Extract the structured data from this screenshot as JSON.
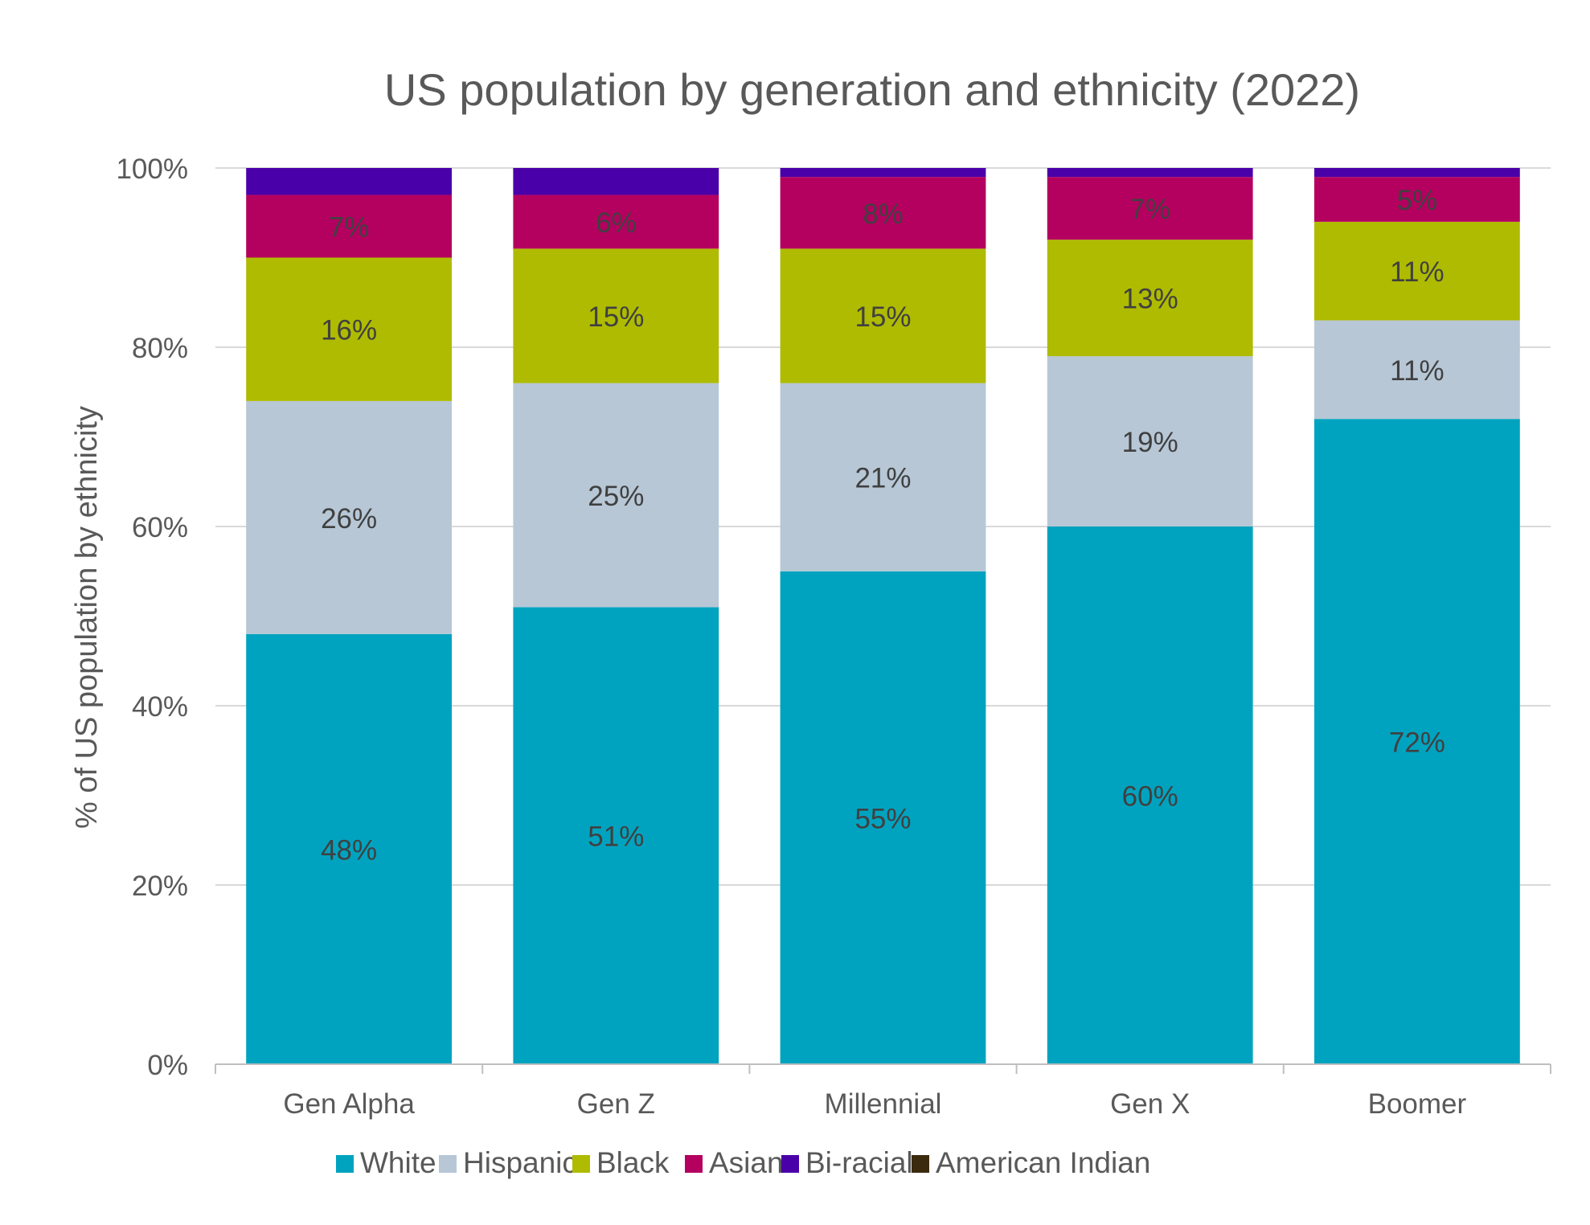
{
  "chart_data": {
    "type": "bar",
    "stacked": true,
    "title": "US population by generation and ethnicity (2022)",
    "xlabel": "",
    "ylabel": "% of US population by ethnicity",
    "ylim": [
      0,
      100
    ],
    "y_ticks": [
      "0%",
      "20%",
      "40%",
      "60%",
      "80%",
      "100%"
    ],
    "y_tick_values": [
      0,
      20,
      40,
      60,
      80,
      100
    ],
    "grid": true,
    "legend_position": "bottom",
    "categories": [
      "Gen Alpha",
      "Gen Z",
      "Millennial",
      "Gen X",
      "Boomer"
    ],
    "series": [
      {
        "name": "White",
        "color": "#00A3BF",
        "values": [
          48,
          51,
          55,
          60,
          72
        ],
        "labels": [
          "48%",
          "51%",
          "55%",
          "60%",
          "72%"
        ]
      },
      {
        "name": "Hispanic",
        "color": "#B7C7D6",
        "values": [
          26,
          25,
          21,
          19,
          11
        ],
        "labels": [
          "26%",
          "25%",
          "21%",
          "19%",
          "11%"
        ]
      },
      {
        "name": "Black",
        "color": "#AFBB00",
        "values": [
          16,
          15,
          15,
          13,
          11
        ],
        "labels": [
          "16%",
          "15%",
          "15%",
          "13%",
          "11%"
        ]
      },
      {
        "name": "Asian",
        "color": "#B4005F",
        "values": [
          7,
          6,
          8,
          7,
          5
        ],
        "labels": [
          "7%",
          "6%",
          "8%",
          "7%",
          "5%"
        ]
      },
      {
        "name": "Bi-racial",
        "color": "#4A00A8",
        "values": [
          3,
          3,
          1,
          1,
          1
        ],
        "labels": [
          "",
          "",
          "",
          "",
          ""
        ]
      },
      {
        "name": "American Indian",
        "color": "#3B2A0E",
        "values": [
          0,
          0,
          0,
          0,
          0
        ],
        "labels": [
          "",
          "",
          "",
          "",
          ""
        ]
      }
    ]
  }
}
